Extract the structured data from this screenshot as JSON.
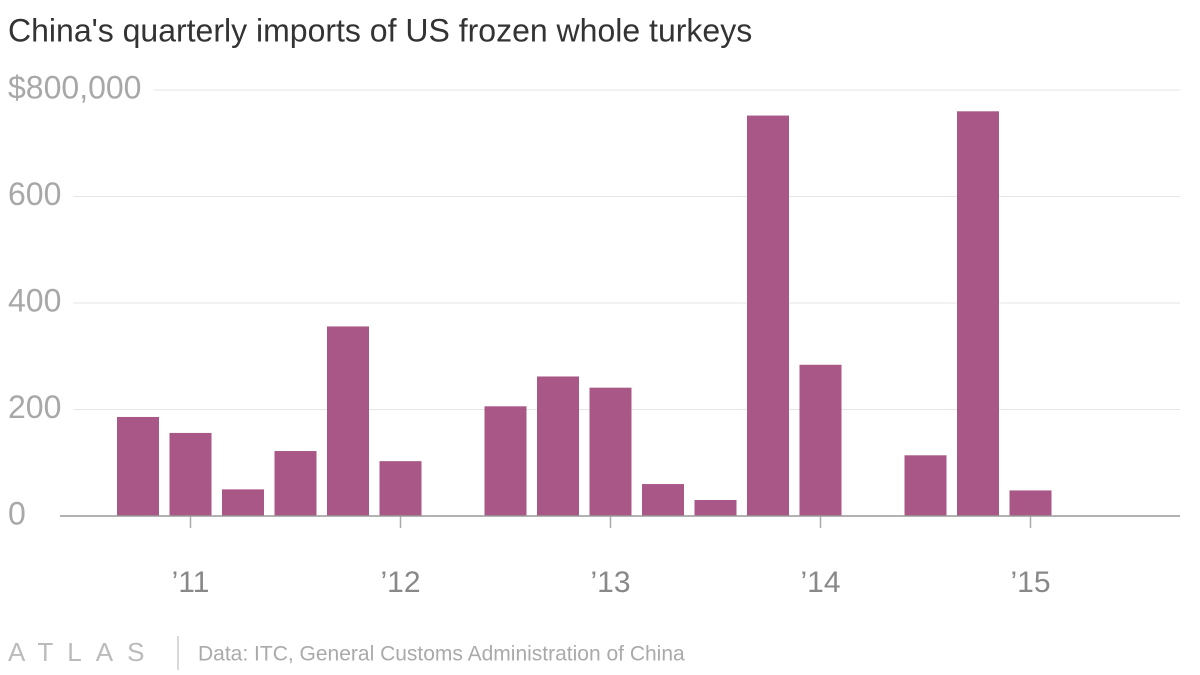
{
  "chart_data": {
    "type": "bar",
    "title": "China's quarterly imports of US frozen whole turkeys",
    "categories": [
      null,
      "’11",
      null,
      null,
      null,
      "’12",
      null,
      null,
      null,
      "’13",
      null,
      null,
      null,
      "’14",
      null,
      null,
      null,
      "’15",
      null,
      null
    ],
    "values": [
      186000,
      156000,
      50000,
      122000,
      356000,
      103000,
      null,
      206000,
      262000,
      241000,
      60000,
      30000,
      752000,
      284000,
      null,
      114000,
      760000,
      48000,
      null,
      null
    ],
    "color": "#a85787",
    "ylim": [
      0,
      800000
    ],
    "yticks": [
      0,
      {
        "value": 200000,
        "label": "200"
      },
      {
        "value": 400000,
        "label": "400"
      },
      {
        "value": 600000,
        "label": "600"
      },
      {
        "value": 800000,
        "label": "$800,000"
      }
    ],
    "grid": true,
    "source": "Data: ITC, General Customs Administration of China",
    "logo": "ATLAS"
  }
}
